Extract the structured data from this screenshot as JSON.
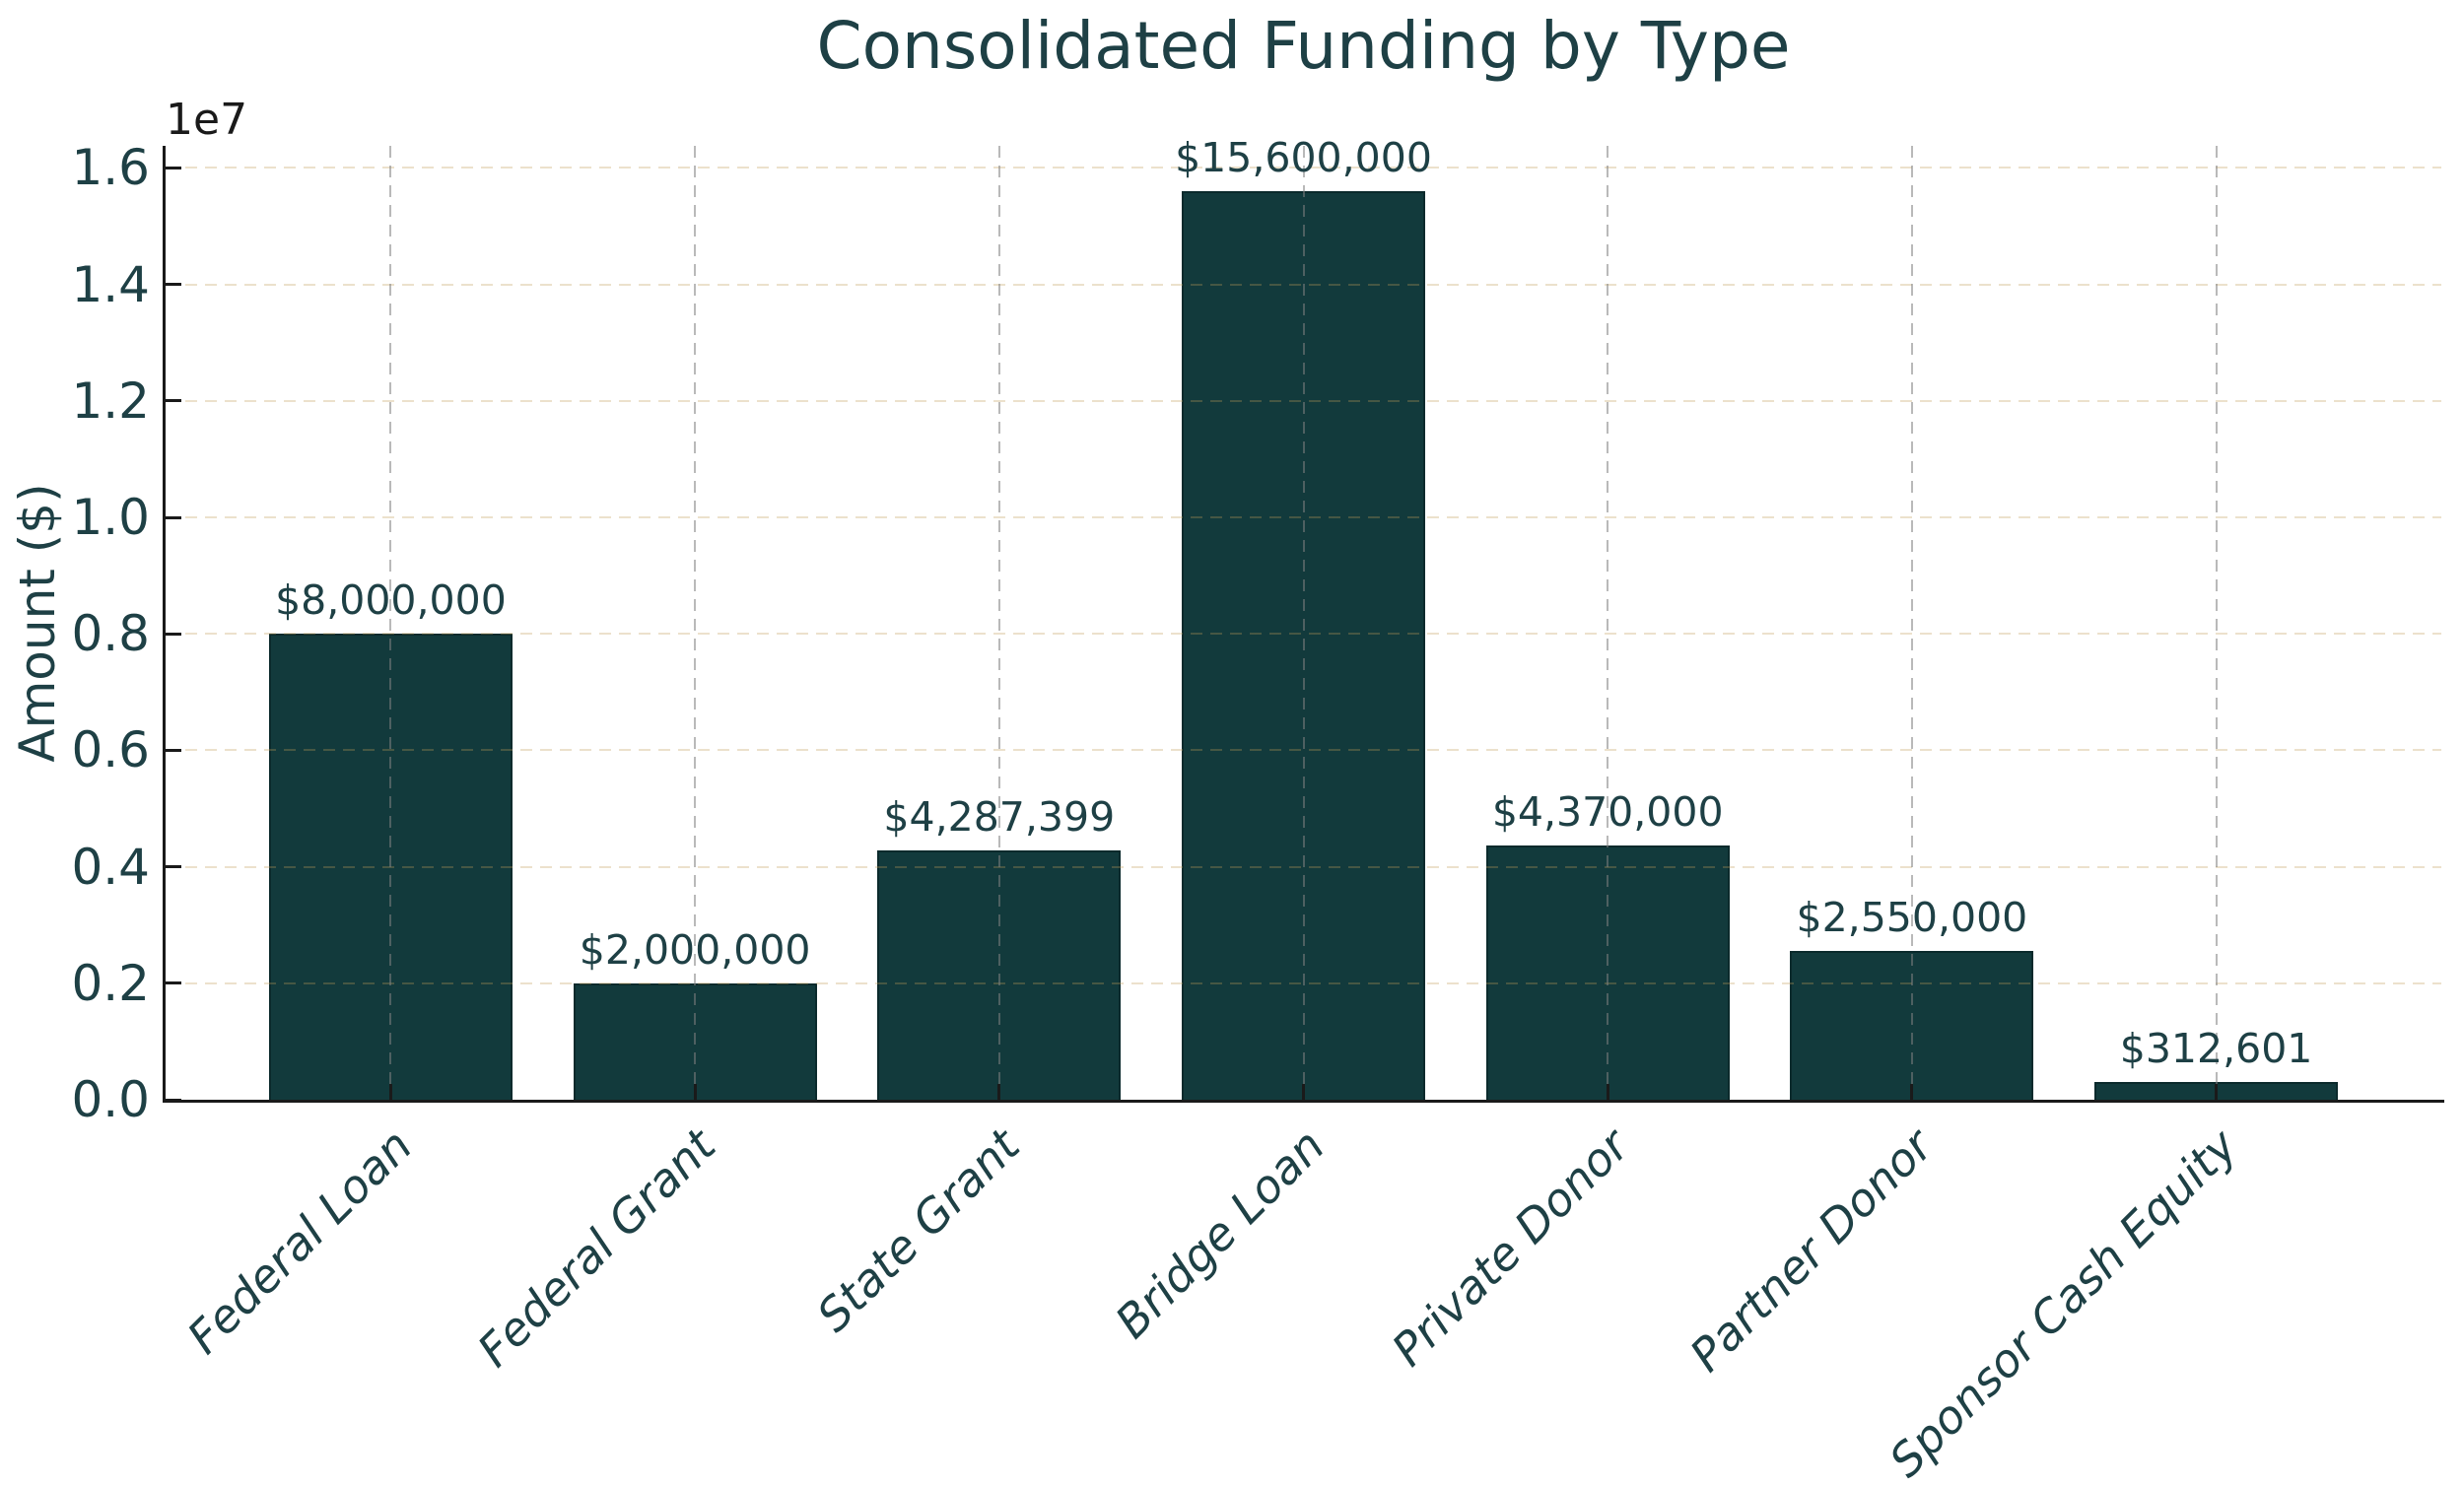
{
  "chart_data": {
    "type": "bar",
    "title": "Consolidated Funding by Type",
    "ylabel": "Amount ($)",
    "xlabel": "",
    "y_offset_text": "1e7",
    "categories": [
      "Federal Loan",
      "Federal Grant",
      "State Grant",
      "Bridge Loan",
      "Private Donor",
      "Partner Donor",
      "Sponsor Cash Equity"
    ],
    "values": [
      8000000,
      2000000,
      4287399,
      15600000,
      4370000,
      2550000,
      312601
    ],
    "value_labels": [
      "$8,000,000",
      "$2,000,000",
      "$4,287,399",
      "$15,600,000",
      "$4,370,000",
      "$2,550,000",
      "$312,601"
    ],
    "yticks": {
      "values": [
        0,
        2000000,
        4000000,
        6000000,
        8000000,
        10000000,
        12000000,
        14000000,
        16000000
      ],
      "labels": [
        "0.0",
        "0.2",
        "0.4",
        "0.6",
        "0.8",
        "1.0",
        "1.2",
        "1.4",
        "1.6"
      ]
    },
    "ylim": [
      0,
      16380000
    ],
    "grid": {
      "horizontal": true,
      "vertical": true,
      "style": "dashed",
      "axisbelow": false
    },
    "legend": "none",
    "colors": {
      "background": "#ffffff",
      "bar_fill": "#123a3c",
      "bar_edge": "#0b2a2c",
      "text": "#1e4045",
      "offset_text": "#1a1a1a",
      "spine": "#1a1a1a",
      "h_grid": "rgba(192,155,85,0.30)",
      "v_grid": "rgba(128,128,128,0.55)"
    }
  }
}
